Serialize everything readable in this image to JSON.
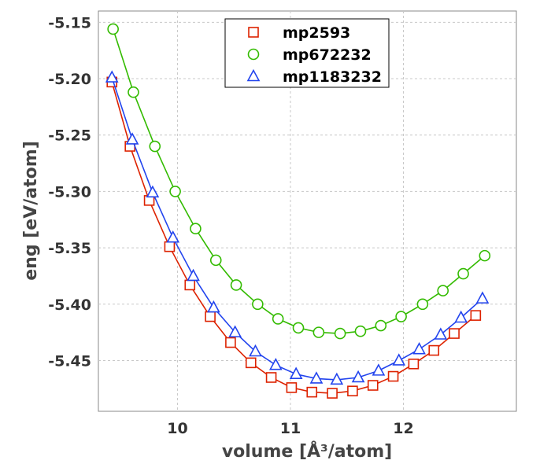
{
  "chart_data": {
    "type": "line",
    "title": "",
    "xlabel": "volume [Å³/atom]",
    "ylabel": "eng [eV/atom]",
    "xlim": [
      9.3,
      13.0
    ],
    "ylim": [
      -5.495,
      -5.14
    ],
    "x_ticks": [
      10,
      11,
      12
    ],
    "y_ticks": [
      -5.45,
      -5.4,
      -5.35,
      -5.3,
      -5.25,
      -5.2,
      -5.15
    ],
    "x_tick_labels": [
      "10",
      "11",
      "12"
    ],
    "y_tick_labels": [
      "-5.45",
      "-5.40",
      "-5.35",
      "-5.30",
      "-5.25",
      "-5.20",
      "-5.15"
    ],
    "grid": true,
    "legend_position": "top-center",
    "series": [
      {
        "name": "mp2593",
        "color": "#dd2200",
        "marker": "square",
        "x": [
          9.42,
          9.58,
          9.75,
          9.93,
          10.11,
          10.29,
          10.47,
          10.65,
          10.83,
          11.01,
          11.19,
          11.37,
          11.55,
          11.73,
          11.91,
          12.09,
          12.27,
          12.45,
          12.64
        ],
        "y": [
          -5.203,
          -5.26,
          -5.308,
          -5.349,
          -5.383,
          -5.411,
          -5.434,
          -5.452,
          -5.465,
          -5.474,
          -5.478,
          -5.479,
          -5.477,
          -5.472,
          -5.464,
          -5.453,
          -5.441,
          -5.426,
          -5.41
        ]
      },
      {
        "name": "mp672232",
        "color": "#33bb00",
        "marker": "circle",
        "x": [
          9.43,
          9.61,
          9.8,
          9.98,
          10.16,
          10.34,
          10.52,
          10.71,
          10.89,
          11.07,
          11.25,
          11.44,
          11.62,
          11.8,
          11.98,
          12.17,
          12.35,
          12.53,
          12.72
        ],
        "y": [
          -5.156,
          -5.212,
          -5.26,
          -5.3,
          -5.333,
          -5.361,
          -5.383,
          -5.4,
          -5.413,
          -5.421,
          -5.425,
          -5.426,
          -5.424,
          -5.419,
          -5.411,
          -5.4,
          -5.388,
          -5.373,
          -5.357
        ]
      },
      {
        "name": "mp1183232",
        "color": "#2244ee",
        "marker": "triangle",
        "x": [
          9.42,
          9.6,
          9.78,
          9.96,
          10.14,
          10.32,
          10.51,
          10.69,
          10.87,
          11.05,
          11.23,
          11.41,
          11.6,
          11.78,
          11.96,
          12.14,
          12.33,
          12.51,
          12.7
        ],
        "y": [
          -5.199,
          -5.254,
          -5.301,
          -5.341,
          -5.375,
          -5.403,
          -5.425,
          -5.442,
          -5.454,
          -5.462,
          -5.466,
          -5.467,
          -5.465,
          -5.459,
          -5.45,
          -5.44,
          -5.427,
          -5.412,
          -5.395
        ]
      }
    ]
  }
}
